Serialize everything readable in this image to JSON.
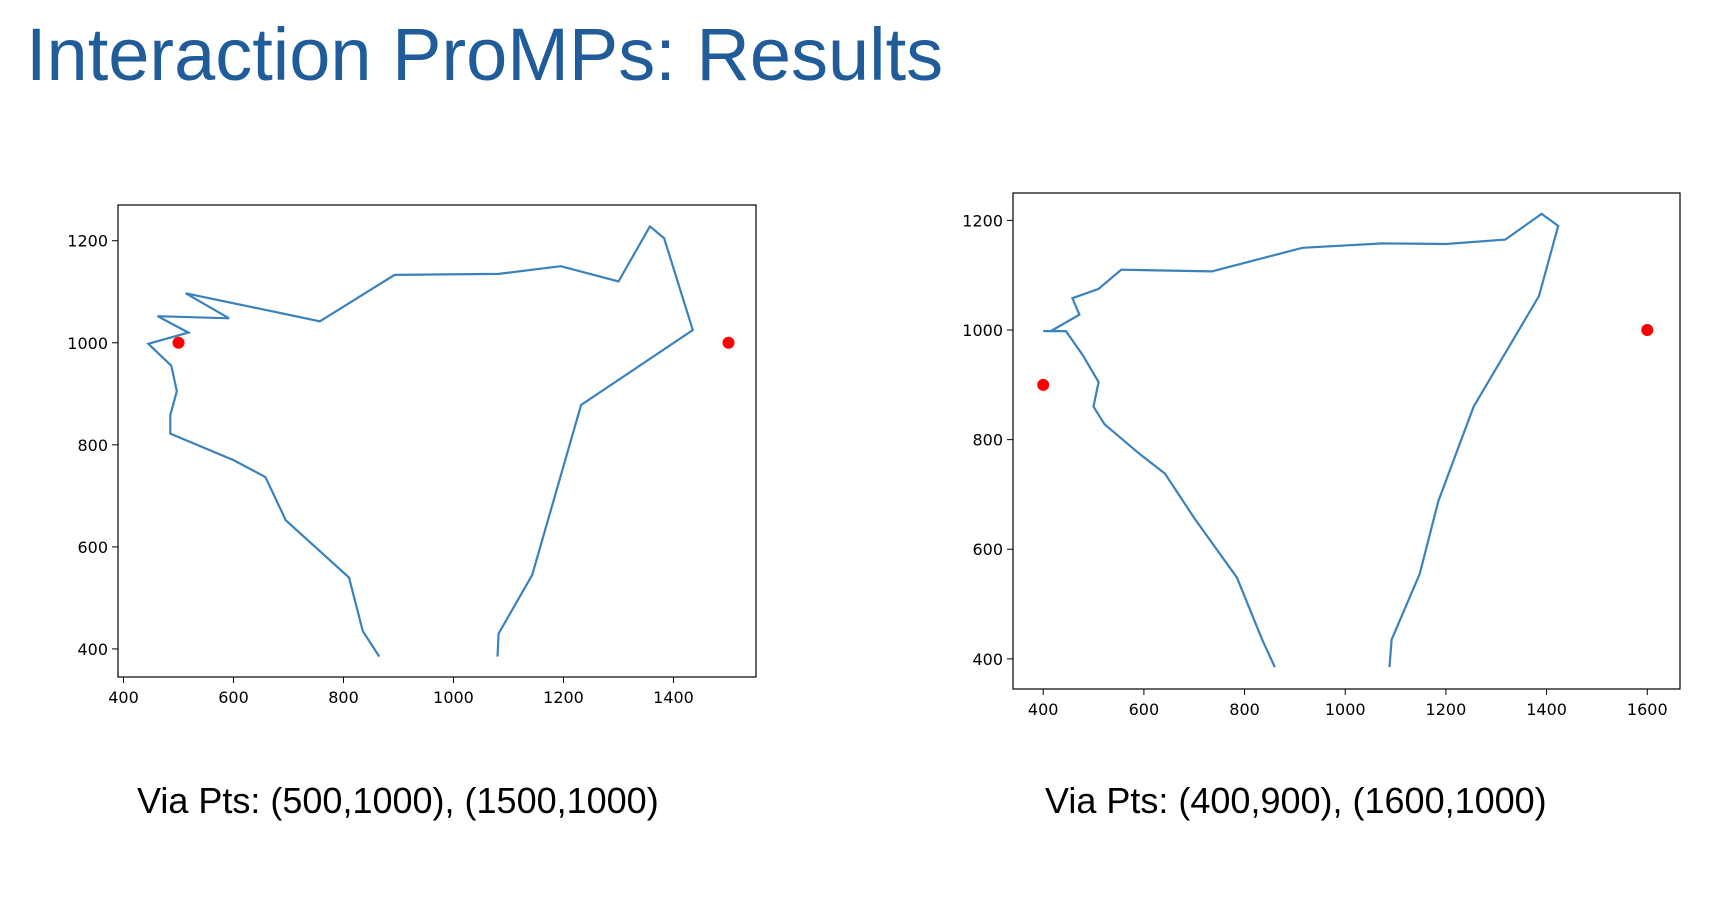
{
  "slide": {
    "title": "Interaction ProMPs: Results"
  },
  "chart_data": [
    {
      "type": "line",
      "title": "",
      "xlabel": "",
      "ylabel": "",
      "xlim": [
        390,
        1550
      ],
      "ylim": [
        345,
        1270
      ],
      "grid": false,
      "xticks": [
        400,
        600,
        800,
        1000,
        1200,
        1400
      ],
      "yticks": [
        400,
        600,
        800,
        1000,
        1200
      ],
      "colors": {
        "line": "#3a82bd",
        "via_point": "#ff0000"
      },
      "series": [
        {
          "values": [
            [
              865,
              385
            ],
            [
              835,
              435
            ],
            [
              810,
              540
            ],
            [
              695,
              652
            ],
            [
              658,
              737
            ],
            [
              600,
              770
            ],
            [
              485,
              822
            ],
            [
              485,
              858
            ],
            [
              497,
              905
            ],
            [
              487,
              955
            ],
            [
              445,
              998
            ],
            [
              518,
              1020
            ],
            [
              462,
              1052
            ],
            [
              592,
              1048
            ],
            [
              513,
              1097
            ],
            [
              757,
              1042
            ],
            [
              893,
              1133
            ],
            [
              1082,
              1135
            ],
            [
              1195,
              1150
            ],
            [
              1300,
              1120
            ],
            [
              1357,
              1228
            ],
            [
              1383,
              1205
            ],
            [
              1435,
              1025
            ],
            [
              1232,
              878
            ],
            [
              1143,
              545
            ],
            [
              1082,
              430
            ],
            [
              1080,
              385
            ]
          ]
        }
      ],
      "via_points": [
        [
          500,
          1000
        ],
        [
          1500,
          1000
        ]
      ],
      "caption": "Via Pts: (500,1000), (1500,1000)"
    },
    {
      "type": "line",
      "title": "",
      "xlabel": "",
      "ylabel": "",
      "xlim": [
        340,
        1665
      ],
      "ylim": [
        345,
        1250
      ],
      "grid": false,
      "xticks": [
        400,
        600,
        800,
        1000,
        1200,
        1400,
        1600
      ],
      "yticks": [
        400,
        600,
        800,
        1000,
        1200
      ],
      "colors": {
        "line": "#3a82bd",
        "via_point": "#ff0000"
      },
      "series": [
        {
          "values": [
            [
              860,
              385
            ],
            [
              835,
              435
            ],
            [
              785,
              548
            ],
            [
              700,
              657
            ],
            [
              642,
              738
            ],
            [
              590,
              775
            ],
            [
              522,
              828
            ],
            [
              500,
              860
            ],
            [
              510,
              905
            ],
            [
              478,
              955
            ],
            [
              445,
              998
            ],
            [
              420,
              998
            ],
            [
              400,
              998
            ],
            [
              415,
              998
            ],
            [
              472,
              1028
            ],
            [
              458,
              1058
            ],
            [
              510,
              1075
            ],
            [
              555,
              1110
            ],
            [
              735,
              1107
            ],
            [
              915,
              1150
            ],
            [
              1075,
              1158
            ],
            [
              1200,
              1157
            ],
            [
              1318,
              1165
            ],
            [
              1390,
              1212
            ],
            [
              1423,
              1190
            ],
            [
              1385,
              1062
            ],
            [
              1255,
              860
            ],
            [
              1185,
              688
            ],
            [
              1148,
              555
            ],
            [
              1092,
              435
            ],
            [
              1088,
              385
            ]
          ]
        }
      ],
      "via_points": [
        [
          400,
          900
        ],
        [
          1600,
          1000
        ]
      ],
      "caption": "Via Pts: (400,900), (1600,1000)"
    }
  ]
}
